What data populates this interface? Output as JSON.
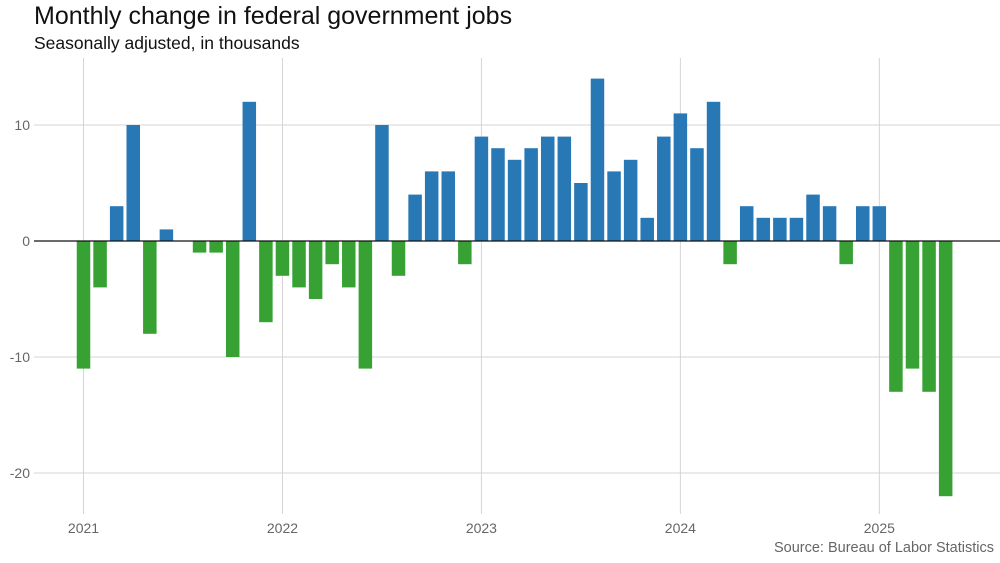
{
  "title": "Monthly change in federal government jobs",
  "subtitle": "Seasonally adjusted, in thousands",
  "source": "Source: Bureau of Labor Statistics",
  "colors": {
    "positive": "#2778b5",
    "negative": "#37a233",
    "grid": "#d4d4d4",
    "zero_line": "#111111",
    "tick_text": "#666666"
  },
  "chart_data": {
    "type": "bar",
    "x_start": "2021-01",
    "x_unit": "month",
    "ylim": [
      -24,
      15.5
    ],
    "y_ticks": [
      -20,
      -10,
      0,
      10
    ],
    "y_tick_labels": [
      "-20",
      "-10",
      "0",
      "10"
    ],
    "x_ticks": [
      "2021",
      "2022",
      "2023",
      "2024",
      "2025"
    ],
    "grid": true,
    "values": [
      -11,
      -4,
      3,
      10,
      -8,
      1,
      0,
      -1,
      -1,
      -10,
      12,
      -7,
      -3,
      -4,
      -5,
      -2,
      -4,
      -11,
      10,
      -3,
      4,
      6,
      6,
      -2,
      9,
      8,
      7,
      8,
      9,
      9,
      5,
      14,
      6,
      7,
      2,
      9,
      11,
      8,
      12,
      -2,
      3,
      2,
      2,
      2,
      4,
      3,
      -2,
      3,
      3,
      -13,
      -11,
      -13,
      -22
    ]
  }
}
